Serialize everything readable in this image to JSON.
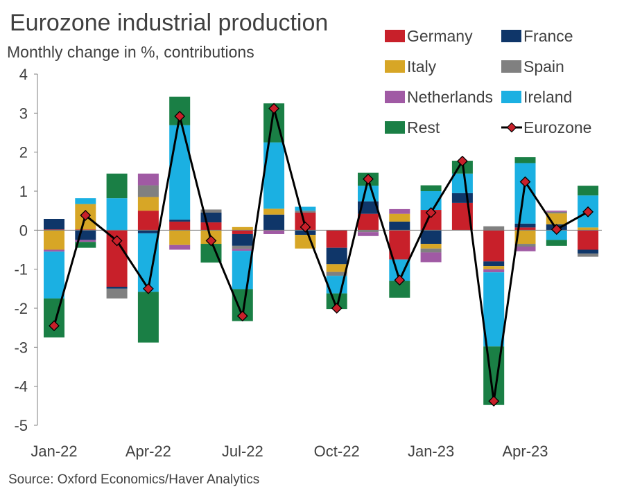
{
  "chart_data": {
    "type": "bar",
    "stacked": true,
    "title": "Eurozone industrial production",
    "subtitle": "Monthly change in %, contributions",
    "source": "Source: Oxford Economics/Haver Analytics",
    "xlabel": "",
    "ylabel": "",
    "ylim": [
      -5,
      4
    ],
    "yticks": [
      4,
      3,
      2,
      1,
      0,
      -1,
      -2,
      -3,
      -4,
      -5
    ],
    "categories": [
      "Jan-22",
      "Feb-22",
      "Mar-22",
      "Apr-22",
      "May-22",
      "Jun-22",
      "Jul-22",
      "Aug-22",
      "Sep-22",
      "Oct-22",
      "Nov-22",
      "Dec-22",
      "Jan-23",
      "Feb-23",
      "Mar-23",
      "Apr-23",
      "May-23",
      "Jun-23"
    ],
    "xtick_labels": [
      "Jan-22",
      "Apr-22",
      "Jul-22",
      "Oct-22",
      "Jan-23",
      "Apr-23"
    ],
    "legend_position": "top-right",
    "series": [
      {
        "name": "Germany",
        "color": "#c8202a",
        "values": [
          0.02,
          0.02,
          -1.45,
          0.5,
          0.22,
          0.2,
          -0.1,
          0.0,
          0.45,
          -0.45,
          0.42,
          -0.75,
          0.52,
          0.7,
          -0.8,
          0.07,
          0.0,
          -0.5
        ]
      },
      {
        "name": "France",
        "color": "#0f3669",
        "values": [
          0.27,
          -0.25,
          -0.05,
          -0.08,
          0.05,
          0.25,
          -0.3,
          0.4,
          -0.12,
          -0.42,
          0.32,
          0.22,
          -0.35,
          0.25,
          -0.12,
          0.1,
          0.15,
          -0.1
        ]
      },
      {
        "name": "Italy",
        "color": "#d7a626",
        "values": [
          -0.5,
          0.65,
          0.0,
          0.35,
          -0.38,
          -0.35,
          0.08,
          0.15,
          -0.35,
          -0.2,
          0.0,
          0.2,
          -0.12,
          0.0,
          -0.08,
          -0.35,
          0.28,
          0.07
        ]
      },
      {
        "name": "Spain",
        "color": "#808080",
        "values": [
          0.0,
          0.0,
          -0.25,
          0.3,
          0.0,
          0.08,
          -0.08,
          0.0,
          0.05,
          -0.1,
          -0.05,
          0.0,
          -0.1,
          0.0,
          0.1,
          -0.07,
          0.04,
          -0.08
        ]
      },
      {
        "name": "Netherlands",
        "color": "#a05aa4",
        "values": [
          -0.05,
          -0.05,
          0.0,
          0.3,
          -0.12,
          0.0,
          -0.05,
          -0.1,
          0.0,
          0.0,
          -0.1,
          0.12,
          -0.25,
          0.0,
          -0.08,
          -0.12,
          0.03,
          0.0
        ]
      },
      {
        "name": "Ireland",
        "color": "#1bb0e2",
        "values": [
          -1.2,
          0.15,
          0.82,
          -1.5,
          2.42,
          0.0,
          -0.98,
          1.7,
          0.1,
          -0.45,
          0.4,
          -0.55,
          0.48,
          0.5,
          -1.9,
          1.55,
          -0.25,
          0.82
        ]
      },
      {
        "name": "Rest",
        "color": "#1a7f45",
        "values": [
          -1.0,
          -0.15,
          0.63,
          -1.3,
          0.73,
          -0.48,
          -0.82,
          1.0,
          0.0,
          -0.4,
          0.33,
          -0.43,
          0.15,
          0.33,
          -1.5,
          0.15,
          -0.15,
          0.25
        ]
      }
    ],
    "line": {
      "name": "Eurozone",
      "color": "#c8202a",
      "line_color": "#000000",
      "values": [
        -2.45,
        0.38,
        -0.27,
        -1.5,
        2.92,
        -0.27,
        -2.2,
        3.12,
        0.08,
        -2.0,
        1.31,
        -1.28,
        0.45,
        1.77,
        -4.38,
        1.24,
        0.02,
        0.47
      ]
    }
  }
}
